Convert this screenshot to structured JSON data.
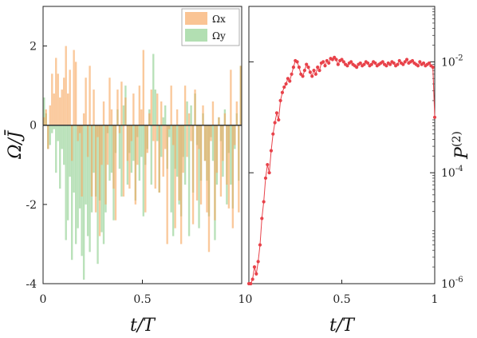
{
  "chart_data": [
    {
      "type": "bar",
      "xlabel": "t/T",
      "ylabel": "Ω/J̄",
      "xlim": [
        0,
        1
      ],
      "ylim": [
        -4,
        3
      ],
      "xticks": [
        "0",
        "0.5",
        "1"
      ],
      "yticks": [
        "2",
        "0",
        "-2",
        "-4"
      ],
      "grid": false,
      "legend": {
        "placement": "top-right",
        "entries": [
          "Ωx",
          "Ωy"
        ]
      },
      "x": [
        0.01,
        0.02,
        0.03,
        0.04,
        0.05,
        0.06,
        0.07,
        0.08,
        0.09,
        0.1,
        0.11,
        0.12,
        0.13,
        0.14,
        0.15,
        0.16,
        0.17,
        0.18,
        0.19,
        0.2,
        0.21,
        0.22,
        0.23,
        0.24,
        0.25,
        0.26,
        0.27,
        0.28,
        0.29,
        0.3,
        0.31,
        0.32,
        0.33,
        0.34,
        0.35,
        0.36,
        0.37,
        0.38,
        0.39,
        0.4,
        0.41,
        0.42,
        0.43,
        0.44,
        0.45,
        0.46,
        0.47,
        0.48,
        0.49,
        0.5,
        0.51,
        0.52,
        0.53,
        0.54,
        0.55,
        0.56,
        0.57,
        0.58,
        0.59,
        0.6,
        0.61,
        0.62,
        0.63,
        0.64,
        0.65,
        0.66,
        0.67,
        0.68,
        0.69,
        0.7,
        0.71,
        0.72,
        0.73,
        0.74,
        0.75,
        0.76,
        0.77,
        0.78,
        0.79,
        0.8,
        0.81,
        0.82,
        0.83,
        0.84,
        0.85,
        0.86,
        0.87,
        0.88,
        0.89,
        0.9,
        0.91,
        0.92,
        0.93,
        0.94,
        0.95,
        0.96,
        0.97,
        0.98,
        0.99,
        1.0
      ],
      "series": [
        {
          "name": "Ωx",
          "color": "#f7a55a",
          "values": [
            0.2,
            0.4,
            -0.6,
            0.5,
            1.3,
            0.8,
            1.7,
            1.3,
            0.7,
            0.9,
            1.2,
            2.0,
            0.8,
            1.4,
            -0.9,
            1.9,
            1.6,
            -0.4,
            -0.2,
            -1.8,
            0.3,
            1.2,
            -0.8,
            1.5,
            -1.8,
            0.9,
            -2.2,
            -0.3,
            -2.8,
            -1.0,
            0.6,
            -2.0,
            -1.0,
            1.2,
            0.4,
            -1.6,
            -2.4,
            0.9,
            -0.2,
            1.1,
            -1.8,
            0.7,
            -0.9,
            -1.6,
            -0.4,
            0.8,
            -2.0,
            -1.0,
            1.0,
            0.4,
            1.9,
            -2.2,
            -0.7,
            0.3,
            0.9,
            -0.4,
            -1.6,
            0.8,
            -1.7,
            0.6,
            -1.3,
            -0.6,
            -3.0,
            -0.1,
            1.0,
            -0.5,
            -2.6,
            0.4,
            -1.9,
            -3.0,
            -1.2,
            1.0,
            -0.8,
            0.3,
            -0.4,
            -2.5,
            0.9,
            -1.9,
            -0.6,
            -2.0,
            0.5,
            -0.9,
            -2.2,
            -3.2,
            -0.4,
            0.6,
            -2.4,
            -1.2,
            0.2,
            -1.8,
            -0.9,
            0.3,
            -1.5,
            -2.1,
            1.4,
            -2.6,
            -0.5,
            0.6,
            -2.2,
            1.5
          ]
        },
        {
          "name": "Ωy",
          "color": "#7fc97f",
          "values": [
            0.7,
            0.3,
            -0.6,
            -0.5,
            -0.2,
            -0.1,
            -1.2,
            -0.4,
            -1.6,
            -0.6,
            -1.0,
            -2.9,
            -2.4,
            -1.3,
            -3.4,
            -1.7,
            -3.0,
            -2.6,
            -2.1,
            -3.3,
            -3.9,
            -2.0,
            -2.8,
            -3.2,
            -2.2,
            -1.2,
            -1.8,
            -3.5,
            -1.9,
            -2.7,
            -3.0,
            -2.2,
            -0.2,
            -1.4,
            -1.2,
            -2.4,
            -0.7,
            0.4,
            -1.1,
            -1.8,
            0.5,
            1.0,
            -1.5,
            -0.7,
            -1.2,
            -0.9,
            -1.9,
            -0.3,
            -1.4,
            -0.8,
            -2.3,
            -1.0,
            -0.6,
            0.4,
            -1.5,
            1.8,
            0.9,
            -0.4,
            -1.7,
            -0.8,
            0.2,
            0.5,
            -1.1,
            -0.3,
            -2.2,
            -2.8,
            -1.1,
            -1.3,
            -2.0,
            -2.3,
            -0.8,
            -1.5,
            0.6,
            -2.8,
            0.5,
            -1.7,
            0.8,
            -0.5,
            -2.6,
            -1.4,
            0.3,
            -0.9,
            -1.4,
            -2.3,
            -0.3,
            -0.9,
            -2.9,
            -1.5,
            0.2,
            -0.4,
            -1.3,
            0.4,
            -2.0,
            -0.7,
            -1.5,
            -2.1,
            -0.6,
            0.3,
            -1.4,
            1.5
          ]
        }
      ]
    },
    {
      "type": "line",
      "xlabel": "t/T",
      "ylabel": "P^(2)",
      "yscale": "log",
      "xlim": [
        0,
        1
      ],
      "ylim": [
        1e-06,
        0.1
      ],
      "xticks": [
        "0",
        "0.5",
        "1"
      ],
      "yticks": [
        {
          "base": "10",
          "exp": "-2",
          "value": 0.01
        },
        {
          "base": "10",
          "exp": "-4",
          "value": 0.0001
        },
        {
          "base": "10",
          "exp": "-6",
          "value": 1e-06
        }
      ],
      "grid": false,
      "color": "#e8424a",
      "x": [
        0,
        0.01,
        0.02,
        0.03,
        0.04,
        0.05,
        0.06,
        0.07,
        0.08,
        0.09,
        0.1,
        0.11,
        0.12,
        0.13,
        0.14,
        0.15,
        0.16,
        0.17,
        0.18,
        0.19,
        0.2,
        0.21,
        0.22,
        0.23,
        0.24,
        0.25,
        0.26,
        0.27,
        0.28,
        0.29,
        0.3,
        0.31,
        0.32,
        0.33,
        0.34,
        0.35,
        0.36,
        0.37,
        0.38,
        0.39,
        0.4,
        0.41,
        0.42,
        0.43,
        0.44,
        0.45,
        0.46,
        0.47,
        0.48,
        0.49,
        0.5,
        0.51,
        0.52,
        0.53,
        0.54,
        0.55,
        0.56,
        0.57,
        0.58,
        0.59,
        0.6,
        0.61,
        0.62,
        0.63,
        0.64,
        0.65,
        0.66,
        0.67,
        0.68,
        0.69,
        0.7,
        0.71,
        0.72,
        0.73,
        0.74,
        0.75,
        0.76,
        0.77,
        0.78,
        0.79,
        0.8,
        0.81,
        0.82,
        0.83,
        0.84,
        0.85,
        0.86,
        0.87,
        0.88,
        0.89,
        0.9,
        0.91,
        0.92,
        0.93,
        0.94,
        0.95,
        0.96,
        0.97,
        0.98,
        0.99,
        1.0
      ],
      "values": [
        1e-06,
        1e-06,
        1.2e-06,
        2e-06,
        1.5e-06,
        2.5e-06,
        5e-06,
        1.5e-05,
        3e-05,
        8e-05,
        0.00014,
        0.0001,
        0.00025,
        0.0005,
        0.0008,
        0.0012,
        0.0009,
        0.002,
        0.0028,
        0.0035,
        0.004,
        0.005,
        0.0045,
        0.006,
        0.008,
        0.0105,
        0.01,
        0.008,
        0.006,
        0.0055,
        0.007,
        0.009,
        0.008,
        0.0065,
        0.0055,
        0.007,
        0.006,
        0.008,
        0.007,
        0.0095,
        0.01,
        0.0085,
        0.0105,
        0.0095,
        0.0115,
        0.011,
        0.012,
        0.011,
        0.009,
        0.0105,
        0.011,
        0.01,
        0.009,
        0.0085,
        0.0095,
        0.01,
        0.009,
        0.0085,
        0.008,
        0.009,
        0.0095,
        0.0085,
        0.009,
        0.01,
        0.0095,
        0.0085,
        0.009,
        0.01,
        0.0095,
        0.0085,
        0.009,
        0.0095,
        0.01,
        0.009,
        0.0085,
        0.0095,
        0.009,
        0.01,
        0.0095,
        0.0085,
        0.009,
        0.0105,
        0.0095,
        0.009,
        0.01,
        0.011,
        0.0095,
        0.01,
        0.0105,
        0.0095,
        0.009,
        0.0085,
        0.01,
        0.009,
        0.0095,
        0.0085,
        0.009,
        0.0095,
        0.0085,
        0.008,
        0.001
      ]
    }
  ]
}
